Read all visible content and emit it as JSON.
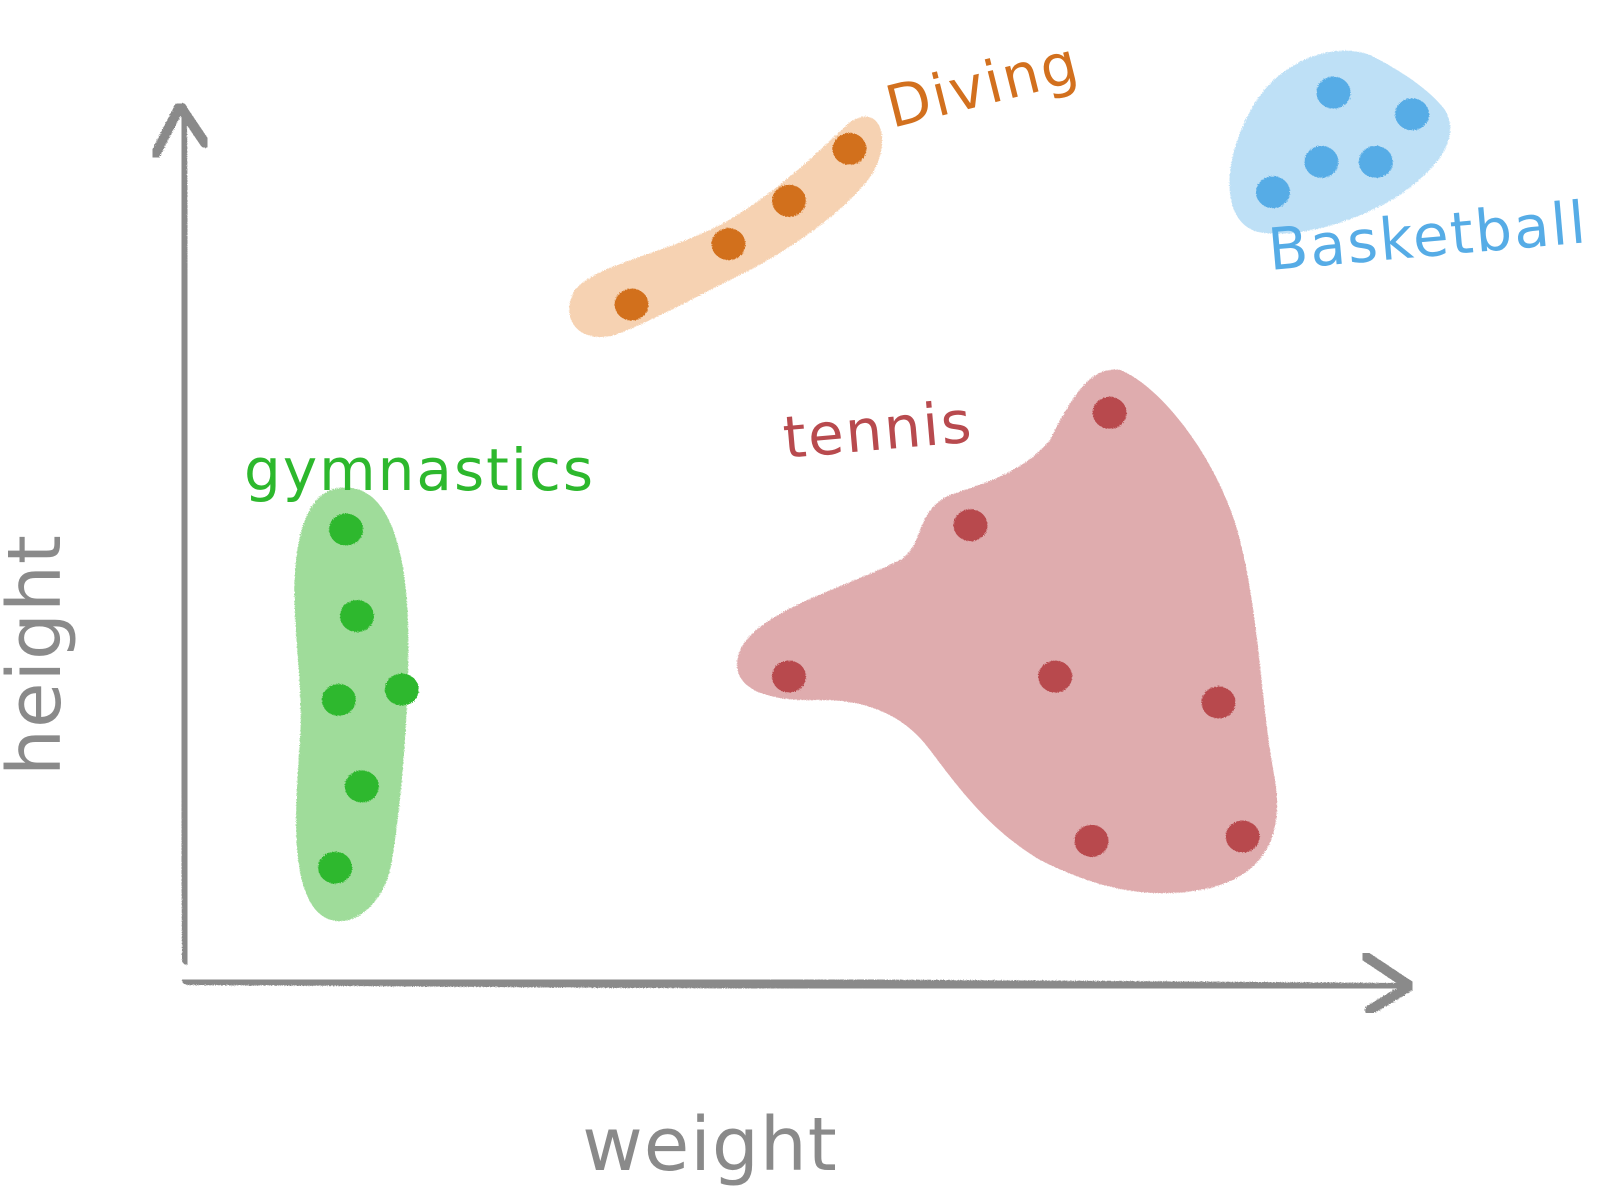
{
  "chart_data": {
    "type": "scatter",
    "title": "",
    "xlabel": "weight",
    "ylabel": "height",
    "xlim": [
      0,
      100
    ],
    "ylim": [
      0,
      100
    ],
    "grid": false,
    "legend": "none",
    "series": [
      {
        "name": "gymnastics",
        "color": "#2db82d",
        "blob_color": "#9fdc9a",
        "points": [
          {
            "x": 12.9,
            "y": 51.5
          },
          {
            "x": 13.8,
            "y": 41.5
          },
          {
            "x": 12.3,
            "y": 31.8
          },
          {
            "x": 17.5,
            "y": 33.0
          },
          {
            "x": 14.2,
            "y": 21.8
          },
          {
            "x": 12.0,
            "y": 12.4
          }
        ]
      },
      {
        "name": "Diving",
        "color": "#d2701e",
        "blob_color": "#f6d2b2",
        "points": [
          {
            "x": 36.5,
            "y": 77.5
          },
          {
            "x": 44.5,
            "y": 84.5
          },
          {
            "x": 49.5,
            "y": 89.5
          },
          {
            "x": 54.5,
            "y": 95.5
          }
        ]
      },
      {
        "name": "tennis",
        "color": "#b84a4e",
        "blob_color": "#dfacae",
        "points": [
          {
            "x": 76.0,
            "y": 65.0
          },
          {
            "x": 64.5,
            "y": 52.0
          },
          {
            "x": 49.5,
            "y": 34.5
          },
          {
            "x": 71.5,
            "y": 34.5
          },
          {
            "x": 85.0,
            "y": 31.5
          },
          {
            "x": 74.5,
            "y": 15.5
          },
          {
            "x": 87.0,
            "y": 16.0
          }
        ]
      },
      {
        "name": "Basketball",
        "color": "#56ace6",
        "blob_color": "#bee0f6",
        "points": [
          {
            "x": 94.5,
            "y": 102.0
          },
          {
            "x": 101.0,
            "y": 99.5
          },
          {
            "x": 93.5,
            "y": 94.0
          },
          {
            "x": 98.0,
            "y": 94.0
          },
          {
            "x": 89.5,
            "y": 90.5
          }
        ]
      }
    ]
  }
}
